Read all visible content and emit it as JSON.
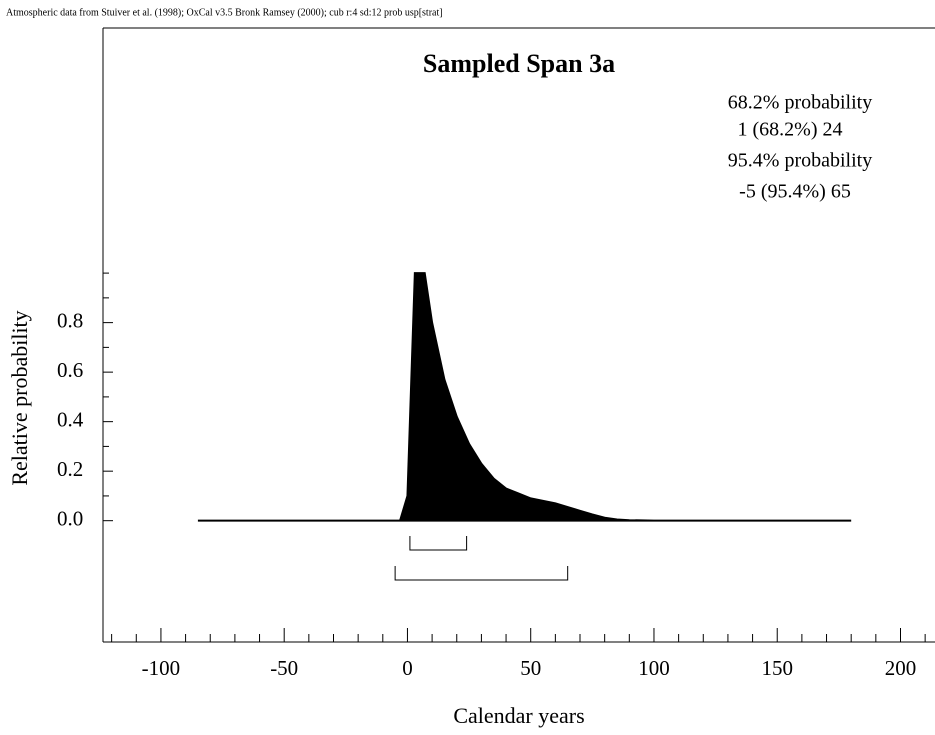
{
  "chart_data": {
    "type": "area",
    "header": "Atmospheric data from Stuiver et al. (1998); OxCal v3.5 Bronk Ramsey (2000); cub r:4 sd:12 prob usp[strat]",
    "title": "Sampled Span 3a",
    "annotations": [
      "68.2% probability",
      "1 (68.2%) 24",
      "95.4% probability",
      "-5 (95.4%) 65"
    ],
    "xlabel": "Calendar years",
    "ylabel": "Relative probability",
    "x": [
      -85,
      -3,
      0,
      3,
      7,
      10,
      15,
      20,
      25,
      30,
      35,
      40,
      45,
      50,
      55,
      60,
      65,
      70,
      75,
      80,
      85,
      90,
      100,
      180
    ],
    "values": [
      0,
      0,
      0.1,
      1.0,
      1.0,
      0.8,
      0.57,
      0.42,
      0.31,
      0.23,
      0.17,
      0.13,
      0.11,
      0.09,
      0.08,
      0.07,
      0.055,
      0.04,
      0.025,
      0.012,
      0.005,
      0.002,
      0,
      0
    ],
    "color": "#000000",
    "ranges": [
      {
        "from": 1,
        "to": 24
      },
      {
        "from": -5,
        "to": 65
      }
    ],
    "xlim": [
      -123.5,
      214
    ],
    "ylim": [
      -0.49,
      1.99
    ],
    "xticks": [
      -100,
      -50,
      0,
      50,
      100,
      150,
      200
    ],
    "xminorticks": [
      -120,
      -110,
      -90,
      -80,
      -70,
      -60,
      -40,
      -30,
      -20,
      -10,
      10,
      20,
      30,
      40,
      60,
      70,
      80,
      90,
      110,
      120,
      130,
      140,
      160,
      170,
      180,
      190,
      210
    ],
    "yticks": [
      {
        "value": 0,
        "label": "0.0"
      },
      0.2,
      0.4,
      0.6,
      0.8
    ],
    "yminorticks": [
      0.1,
      0.3,
      0.5,
      0.7,
      0.9,
      1
    ]
  }
}
